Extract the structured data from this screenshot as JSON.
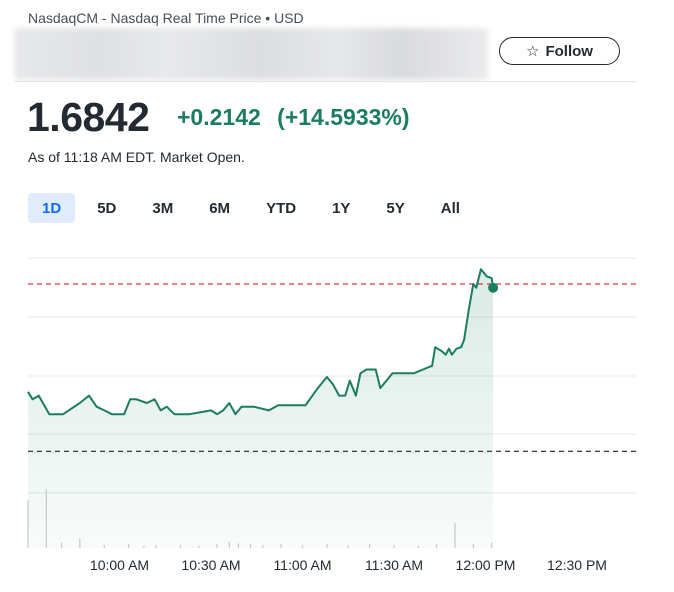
{
  "header": {
    "exchange_info": "NasdaqCM - Nasdaq Real Time Price • USD",
    "follow_label": "Follow",
    "follow_icon": "star-icon"
  },
  "quote": {
    "price": "1.6842",
    "change": "+0.2142",
    "change_percent": "(+14.5933%)",
    "as_of": "As of 11:18 AM EDT. Market Open.",
    "change_color": "#1a7e5e"
  },
  "range_tabs": [
    {
      "label": "1D",
      "active": true
    },
    {
      "label": "5D",
      "active": false
    },
    {
      "label": "3M",
      "active": false
    },
    {
      "label": "6M",
      "active": false
    },
    {
      "label": "YTD",
      "active": false
    },
    {
      "label": "1Y",
      "active": false
    },
    {
      "label": "5Y",
      "active": false
    },
    {
      "label": "All",
      "active": false
    }
  ],
  "chart_data": {
    "type": "area",
    "x_ticks": [
      "10:00 AM",
      "10:30 AM",
      "11:00 AM",
      "11:30 AM",
      "12:00 PM",
      "12:30 PM"
    ],
    "x_domain_minutes": [
      570,
      765
    ],
    "y_domain": [
      1.34,
      1.73
    ],
    "previous_close": 1.47,
    "previous_close_label": "",
    "line_color": "#1a7e5e",
    "fill_color": "#1a7e5e",
    "previous_close_color": "#222222",
    "high_line_color": "#d93a3a",
    "high_line_value": 1.695,
    "series": [
      {
        "values": [
          [
            570,
            1.55
          ],
          [
            571.5,
            1.54
          ],
          [
            573.5,
            1.545
          ],
          [
            577,
            1.52
          ],
          [
            581.5,
            1.52
          ],
          [
            587,
            1.535
          ],
          [
            590,
            1.545
          ],
          [
            592.5,
            1.53
          ],
          [
            595,
            1.525
          ],
          [
            597.5,
            1.52
          ],
          [
            601.5,
            1.52
          ],
          [
            603.5,
            1.54
          ],
          [
            605.5,
            1.54
          ],
          [
            609,
            1.535
          ],
          [
            611.5,
            1.54
          ],
          [
            613.5,
            1.525
          ],
          [
            615.5,
            1.53
          ],
          [
            618,
            1.52
          ],
          [
            623,
            1.52
          ],
          [
            630,
            1.525
          ],
          [
            632,
            1.52
          ],
          [
            634,
            1.525
          ],
          [
            636,
            1.535
          ],
          [
            638,
            1.52
          ],
          [
            640,
            1.53
          ],
          [
            644,
            1.53
          ],
          [
            649,
            1.525
          ],
          [
            652,
            1.532
          ],
          [
            657,
            1.532
          ],
          [
            661,
            1.532
          ],
          [
            665,
            1.555
          ],
          [
            668,
            1.57
          ],
          [
            670,
            1.56
          ],
          [
            672,
            1.545
          ],
          [
            674,
            1.545
          ],
          [
            675.5,
            1.565
          ],
          [
            677.5,
            1.545
          ],
          [
            679,
            1.575
          ],
          [
            681,
            1.58
          ],
          [
            684,
            1.58
          ],
          [
            685.5,
            1.555
          ],
          [
            687.5,
            1.565
          ],
          [
            689.5,
            1.575
          ],
          [
            692.5,
            1.575
          ],
          [
            694.5,
            1.575
          ],
          [
            696.5,
            1.575
          ],
          [
            699.5,
            1.58
          ],
          [
            702.5,
            1.585
          ],
          [
            703.5,
            1.61
          ],
          [
            705.5,
            1.605
          ],
          [
            707,
            1.6
          ],
          [
            708,
            1.608
          ],
          [
            709,
            1.6
          ],
          [
            710.5,
            1.608
          ],
          [
            712,
            1.61
          ],
          [
            713,
            1.62
          ],
          [
            714.5,
            1.66
          ],
          [
            716,
            1.695
          ],
          [
            717,
            1.69
          ],
          [
            718.5,
            1.715
          ],
          [
            720.5,
            1.705
          ],
          [
            722,
            1.703
          ],
          [
            722.5,
            1.69
          ]
        ]
      }
    ],
    "volume": [
      [
        570,
        0.62
      ],
      [
        576,
        0.75
      ],
      [
        581,
        0.07
      ],
      [
        587,
        0.12
      ],
      [
        595,
        0.04
      ],
      [
        603,
        0.05
      ],
      [
        608,
        0.03
      ],
      [
        612,
        0.04
      ],
      [
        620,
        0.04
      ],
      [
        626,
        0.03
      ],
      [
        632,
        0.05
      ],
      [
        636,
        0.08
      ],
      [
        639,
        0.06
      ],
      [
        643,
        0.05
      ],
      [
        647,
        0.04
      ],
      [
        653,
        0.05
      ],
      [
        660,
        0.04
      ],
      [
        668,
        0.05
      ],
      [
        675,
        0.04
      ],
      [
        682,
        0.05
      ],
      [
        690,
        0.04
      ],
      [
        698,
        0.03
      ],
      [
        704,
        0.05
      ],
      [
        710,
        0.32
      ],
      [
        716,
        0.05
      ],
      [
        722,
        0.07
      ]
    ]
  }
}
